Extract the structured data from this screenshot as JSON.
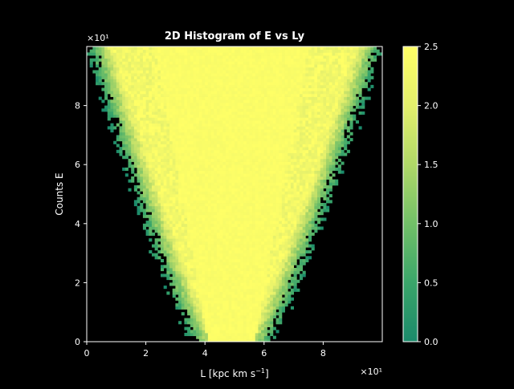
{
  "chart_data": {
    "type": "heatmap",
    "title": "2D Histogram of E vs Ly",
    "xlabel": "L [kpc km s",
    "xlabel_sup": "−1",
    "xlabel_end": "]",
    "ylabel": "Counts E",
    "x_multiplier": "×10¹",
    "y_multiplier": "×10¹",
    "xlim": [
      0,
      10
    ],
    "ylim": [
      0,
      10
    ],
    "x_ticks": [
      0,
      2,
      4,
      6,
      8
    ],
    "x_tick_labels": [
      "0",
      "2",
      "4",
      "6",
      "8"
    ],
    "y_ticks": [
      0,
      2,
      4,
      6,
      8
    ],
    "y_tick_labels": [
      "0",
      "2",
      "4",
      "6",
      "8"
    ],
    "colorbar": {
      "range": [
        0.0,
        2.5
      ],
      "ticks": [
        0.0,
        0.5,
        1.0,
        1.5,
        2.0,
        2.5
      ],
      "tick_labels": [
        "0.0",
        "0.5",
        "1.0",
        "1.5",
        "2.0",
        "2.5"
      ],
      "colors": [
        "#1b8a6b",
        "#3aa56a",
        "#72c068",
        "#b0d868",
        "#e3ef6c",
        "#ffff66"
      ]
    },
    "grid": false,
    "wedge": {
      "description_data": "filled region bounds in data units",
      "bottom_left_x": 3.6,
      "bottom_right_x": 6.2,
      "top_left_x": 0.0,
      "top_right_x": 10.0,
      "core_center_x": 4.9,
      "bottom_core_half_width": 0.8,
      "top_core_half_width": 2.6,
      "bins": 100
    }
  }
}
